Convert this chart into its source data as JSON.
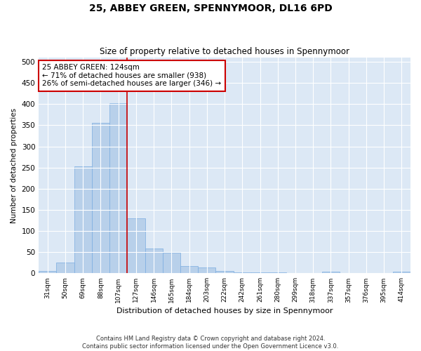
{
  "title": "25, ABBEY GREEN, SPENNYMOOR, DL16 6PD",
  "subtitle": "Size of property relative to detached houses in Spennymoor",
  "xlabel": "Distribution of detached houses by size in Spennymoor",
  "ylabel": "Number of detached properties",
  "footer_line1": "Contains HM Land Registry data © Crown copyright and database right 2024.",
  "footer_line2": "Contains public sector information licensed under the Open Government Licence v3.0.",
  "categories": [
    "31sqm",
    "50sqm",
    "69sqm",
    "88sqm",
    "107sqm",
    "127sqm",
    "146sqm",
    "165sqm",
    "184sqm",
    "203sqm",
    "222sqm",
    "242sqm",
    "261sqm",
    "280sqm",
    "299sqm",
    "318sqm",
    "337sqm",
    "357sqm",
    "376sqm",
    "395sqm",
    "414sqm"
  ],
  "values": [
    5,
    25,
    252,
    355,
    402,
    130,
    59,
    48,
    17,
    13,
    5,
    3,
    3,
    2,
    1,
    1,
    4,
    0,
    1,
    0,
    4
  ],
  "bar_color": "#b8d0ea",
  "bar_edge_color": "#7aace0",
  "bg_color": "#dce8f5",
  "grid_color": "#ffffff",
  "property_line_x": 4.5,
  "annotation_text_line1": "25 ABBEY GREEN: 124sqm",
  "annotation_text_line2": "← 71% of detached houses are smaller (938)",
  "annotation_text_line3": "26% of semi-detached houses are larger (346) →",
  "annotation_box_color": "#ffffff",
  "annotation_border_color": "#cc0000",
  "ylim": [
    0,
    510
  ],
  "yticks": [
    0,
    50,
    100,
    150,
    200,
    250,
    300,
    350,
    400,
    450,
    500
  ]
}
